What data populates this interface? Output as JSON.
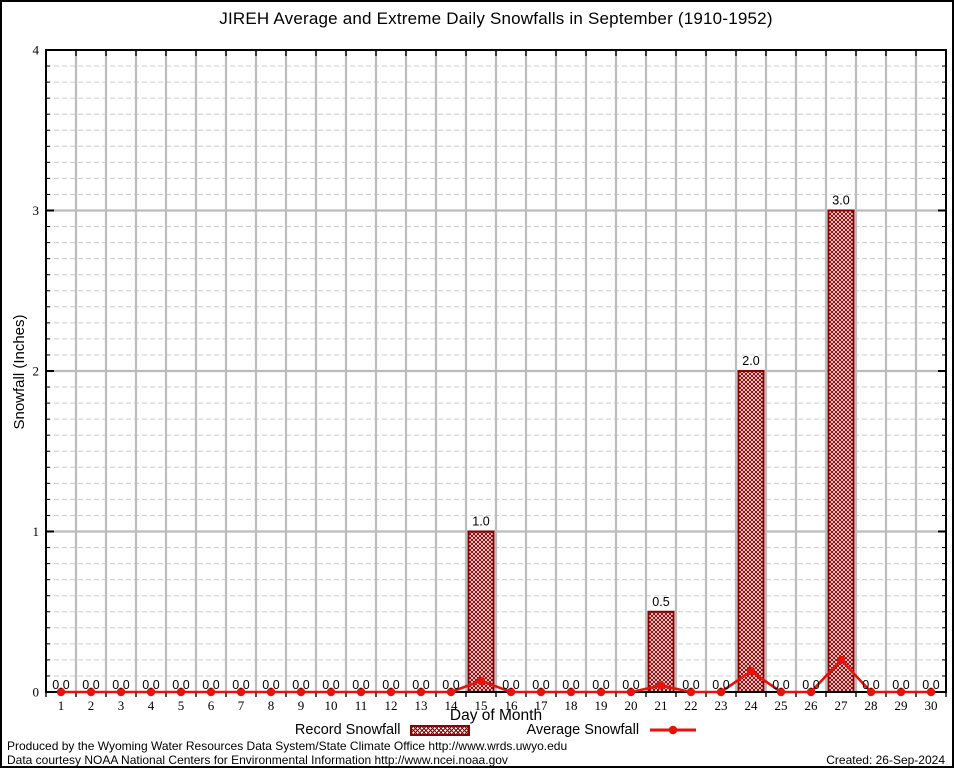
{
  "chart_data": {
    "type": "bar",
    "title": "JIREH Average and Extreme Daily Snowfalls in September (1910-1952)",
    "xlabel": "Day of Month",
    "ylabel": "Snowfall (Inches)",
    "categories": [
      1,
      2,
      3,
      4,
      5,
      6,
      7,
      8,
      9,
      10,
      11,
      12,
      13,
      14,
      15,
      16,
      17,
      18,
      19,
      20,
      21,
      22,
      23,
      24,
      25,
      26,
      27,
      28,
      29,
      30
    ],
    "series": [
      {
        "name": "Record Snowfall",
        "type": "bar",
        "values": [
          0,
          0,
          0,
          0,
          0,
          0,
          0,
          0,
          0,
          0,
          0,
          0,
          0,
          0,
          1.0,
          0,
          0,
          0,
          0,
          0,
          0.5,
          0,
          0,
          2.0,
          0,
          0,
          3.0,
          0,
          0,
          0
        ]
      },
      {
        "name": "Average Snowfall",
        "type": "line",
        "values": [
          0,
          0,
          0,
          0,
          0,
          0,
          0,
          0,
          0,
          0,
          0,
          0,
          0,
          0,
          0.07,
          0,
          0,
          0,
          0,
          0,
          0.04,
          0,
          0,
          0.13,
          0,
          0,
          0.2,
          0,
          0,
          0
        ]
      }
    ],
    "ylim": [
      0,
      4
    ],
    "y_ticks": [
      0,
      1,
      2,
      3,
      4
    ],
    "y_major_step": 1,
    "y_minor_step": 0.1,
    "value_labels": true,
    "value_label_decimals": 1,
    "grid": true,
    "legend_position": "bottom",
    "bar_color": "#8b0000",
    "line_color": "#e8120b",
    "grid_major_color": "#bcbcbc",
    "grid_minor_color": "#cccccc",
    "axis_color": "#000000",
    "background_color": "#ffffff"
  },
  "footer": {
    "line1": "Produced by the Wyoming Water Resources Data System/State Climate Office http://www.wrds.uwyo.edu",
    "line2": "Data courtesy NOAA National Centers for Environmental Information http://www.ncei.noaa.gov",
    "created": "Created: 26-Sep-2024"
  }
}
